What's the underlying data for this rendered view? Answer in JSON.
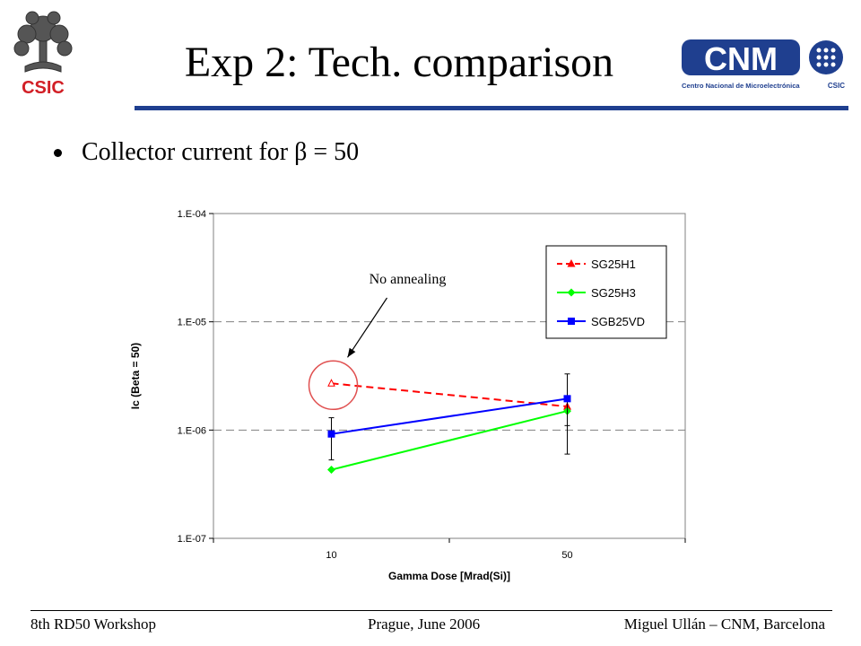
{
  "slide": {
    "title": "Exp 2: Tech. comparison",
    "bullet": "Collector current for β = 50"
  },
  "logos": {
    "left_text": "CSIC",
    "right_main": "CNM",
    "right_sub": "Centro Nacional de Microelectrónica",
    "right_tag": "CSIC"
  },
  "footer": {
    "left": "8th RD50 Workshop",
    "center": "Prague, June 2006",
    "right": "Miguel Ullán – CNM, Barcelona"
  },
  "colors": {
    "accent_blue": "#1f3f8f",
    "csic_red": "#d21f26"
  },
  "chart_data": {
    "type": "line",
    "title": "",
    "xlabel": "Gamma Dose [Mrad(Si)]",
    "ylabel": "Ic (Beta = 50)",
    "categories": [
      "10",
      "50"
    ],
    "y_scale": "log",
    "ylim": [
      1e-07,
      0.0001
    ],
    "y_ticks": [
      1e-07,
      1e-06,
      1e-05,
      0.0001
    ],
    "y_tick_labels": [
      "1.E-07",
      "1.E-06",
      "1.E-05",
      "1.E-04"
    ],
    "grid": "horizontal dashed",
    "legend_position": "top-right",
    "series": [
      {
        "name": "SG25H1",
        "color": "#ff0000",
        "marker": "triangle",
        "dashed": true,
        "values": [
          2.7e-06,
          1.65e-06
        ],
        "err_low": [
          null,
          null
        ],
        "err_high": [
          null,
          null
        ]
      },
      {
        "name": "SG25H3",
        "color": "#00ff00",
        "marker": "diamond",
        "dashed": false,
        "values": [
          4.3e-07,
          1.5e-06
        ],
        "err_low": [
          null,
          1.1e-06
        ],
        "err_high": [
          null,
          2e-06
        ]
      },
      {
        "name": "SGB25VD",
        "color": "#0000ff",
        "marker": "square",
        "dashed": false,
        "values": [
          9.2e-07,
          1.95e-06
        ],
        "err_low": [
          5.3e-07,
          6e-07
        ],
        "err_high": [
          1.3e-06,
          3.3e-06
        ]
      }
    ],
    "annotation": {
      "text": "No annealing",
      "series": 0,
      "point": 0
    }
  }
}
